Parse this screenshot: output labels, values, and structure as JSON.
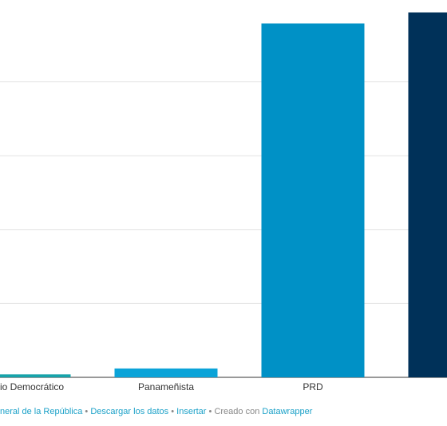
{
  "chart_data": {
    "type": "bar",
    "categories": [
      "io Democrático",
      "Panameñista",
      "PRD",
      null
    ],
    "values": [
      0.04,
      0.12,
      4.79,
      4.94
    ],
    "colors": [
      "#17a3aa",
      "#0aa3d8",
      "#0091c6",
      "#003159"
    ],
    "ylim": [
      0,
      5
    ],
    "yticks": [
      0,
      1,
      2,
      3,
      4
    ],
    "grid": true
  },
  "footer": {
    "links": [
      "neral de la República",
      "Descargar los datos",
      "Insertar"
    ],
    "separator": "•",
    "credit_text": "Creado con",
    "credit_link": "Datawrapper"
  }
}
